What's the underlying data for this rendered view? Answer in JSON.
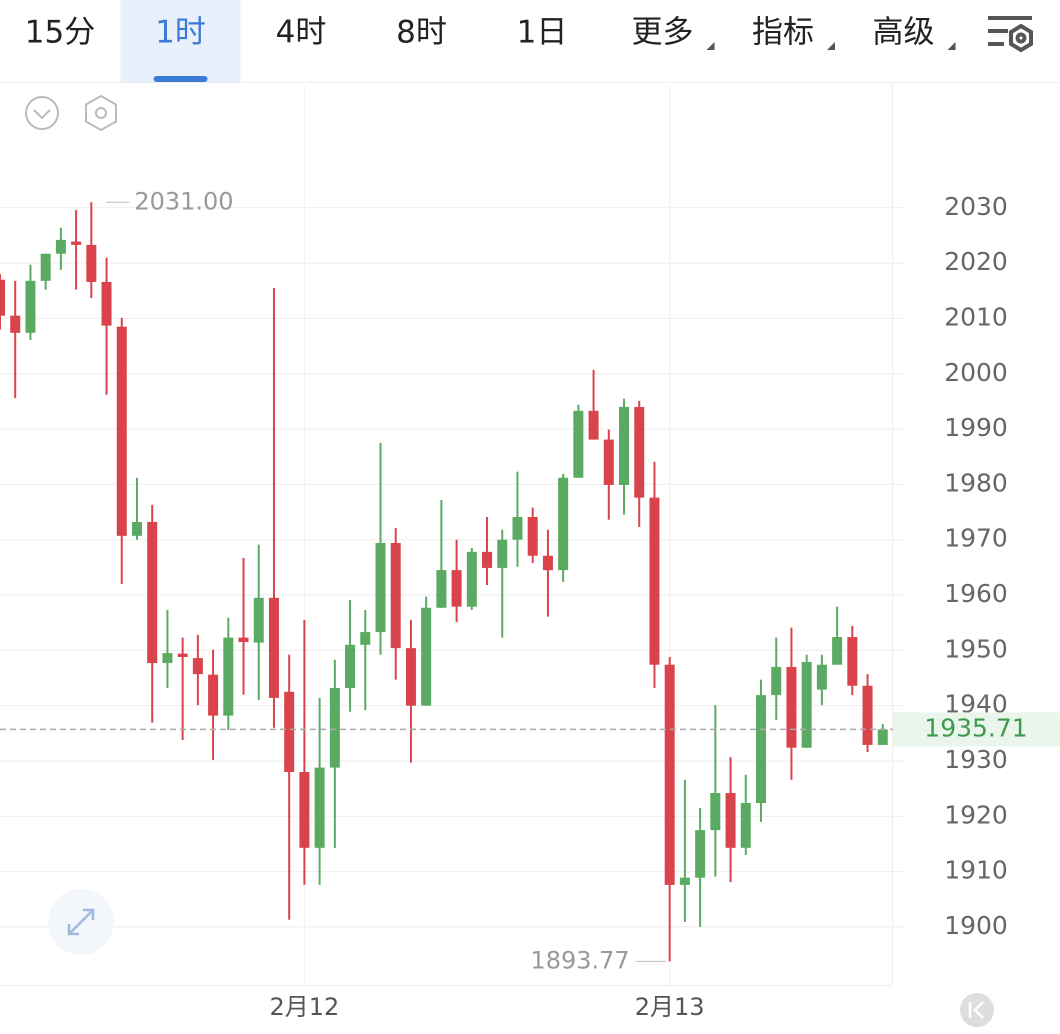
{
  "tabs": [
    {
      "label": "15分",
      "active": false,
      "menu": false
    },
    {
      "label": "1时",
      "active": true,
      "menu": false
    },
    {
      "label": "4时",
      "active": false,
      "menu": false
    },
    {
      "label": "8时",
      "active": false,
      "menu": false
    },
    {
      "label": "1日",
      "active": false,
      "menu": false
    },
    {
      "label": "更多",
      "active": false,
      "menu": true
    },
    {
      "label": "指标",
      "active": false,
      "menu": true
    },
    {
      "label": "高级",
      "active": false,
      "menu": true
    }
  ],
  "chart_data": {
    "type": "candlestick",
    "categories": [
      null,
      null,
      null,
      null,
      null,
      null,
      null,
      null,
      null,
      null,
      null,
      null,
      null,
      null,
      null,
      null,
      null,
      null,
      null,
      null,
      "2月12",
      null,
      null,
      null,
      null,
      null,
      null,
      null,
      null,
      null,
      null,
      null,
      null,
      null,
      null,
      null,
      null,
      null,
      null,
      null,
      null,
      null,
      null,
      null,
      "2月13",
      null,
      null,
      null,
      null,
      null,
      null,
      null,
      null,
      null,
      null,
      null,
      null,
      null,
      null
    ],
    "open": [
      2017,
      2010.5,
      2007.4,
      2016.8,
      2021.7,
      2023.9,
      2023.3,
      2016.6,
      2008.5,
      1970.7,
      1973.2,
      1947.7,
      1949.4,
      1948.6,
      1945.6,
      1938.2,
      1952.3,
      1951.4,
      1959.5,
      1942.5,
      1928.0,
      1914.3,
      1928.8,
      1943.2,
      1951.0,
      1953.3,
      1969.4,
      1950.4,
      1940.0,
      1957.7,
      1964.5,
      1957.9,
      1967.8,
      1964.9,
      1970.0,
      1974.1,
      1967.1,
      1964.5,
      1981.2,
      1993.3,
      1988.1,
      1979.9,
      1994.0,
      1977.6,
      1947.4,
      1907.6,
      1908.9,
      1917.5,
      1924.2,
      1914.3,
      1922.4,
      1941.9,
      1947.0,
      1932.4,
      1942.9,
      1947.4,
      1952.4,
      1943.6,
      1932.9
    ],
    "high": [
      2018,
      2016.8,
      2019.7,
      2021.7,
      2026.4,
      2029.6,
      2031,
      2021,
      2010.1,
      1981.2,
      1976.3,
      1957.3,
      1952.3,
      1952.8,
      1950.1,
      1955.9,
      1966.7,
      1969.1,
      2015.5,
      1949.2,
      1955.5,
      1941.4,
      1948.3,
      1959.1,
      1957.3,
      1987.5,
      1972.1,
      1955.5,
      1959.7,
      1977.2,
      1970.0,
      1968.5,
      1974.1,
      1971.8,
      1982.3,
      1975.8,
      1971.8,
      1981.9,
      1994.4,
      2000.7,
      1989.9,
      1995.5,
      1995.1,
      1984.1,
      1948.8,
      1926.6,
      1921.5,
      1940.1,
      1930.7,
      1927.5,
      1944.7,
      1952.3,
      1954.1,
      1949.2,
      1949.2,
      1957.9,
      1954.4,
      1945.7,
      1936.7
    ],
    "low": [
      2008,
      1995.6,
      2006.1,
      2015.2,
      2018.8,
      2015.2,
      2013.7,
      1996.2,
      1962.0,
      1970.0,
      1936.9,
      1943.2,
      1933.8,
      1940.1,
      1930.2,
      1935.6,
      1942.0,
      1941.0,
      1936.0,
      1901.3,
      1907.6,
      1907.6,
      1914.3,
      1938.9,
      1939.2,
      1949.2,
      1944.7,
      1929.7,
      1940.0,
      1957.7,
      1955.1,
      1957.3,
      1961.8,
      1952.3,
      1965.1,
      1965.8,
      1956.1,
      1962.4,
      1981.2,
      1988.1,
      1973.6,
      1974.5,
      1972.3,
      1943.2,
      1893.77,
      1900.9,
      1900.0,
      1909.1,
      1908.1,
      1913.0,
      1919.0,
      1937.4,
      1926.6,
      1932.4,
      1940.1,
      1947.4,
      1941.9,
      1931.6,
      1932.9
    ],
    "close": [
      2010.5,
      2007.4,
      2016.8,
      2021.7,
      2024.2,
      2023.3,
      2016.6,
      2008.7,
      1970.7,
      1973.2,
      1947.7,
      1949.5,
      1948.8,
      1945.7,
      1938.2,
      1952.3,
      1951.5,
      1959.5,
      1941.4,
      1928.0,
      1914.3,
      1928.8,
      1943.2,
      1951.0,
      1953.3,
      1969.4,
      1950.4,
      1940.0,
      1957.7,
      1964.5,
      1957.9,
      1967.8,
      1964.9,
      1970.0,
      1974.1,
      1967.1,
      1964.5,
      1981.2,
      1993.3,
      1988.1,
      1979.9,
      1994.0,
      1977.6,
      1947.4,
      1907.6,
      1908.9,
      1917.5,
      1924.2,
      1914.3,
      1922.4,
      1941.9,
      1947.0,
      1932.4,
      1947.9,
      1947.4,
      1952.4,
      1943.6,
      1932.9,
      1935.71
    ],
    "up_color": "#5aab61",
    "down_color": "#d9434b",
    "ylim": [
      1889.5,
      2052.2
    ],
    "yticks": [
      1900,
      1910,
      1920,
      1930,
      1940,
      1950,
      1960,
      1970,
      1980,
      1990,
      2000,
      2010,
      2020,
      2030
    ],
    "grid": true,
    "max_label": {
      "value": 2031,
      "label": "2031.00"
    },
    "min_label": 1893.77
  }
}
